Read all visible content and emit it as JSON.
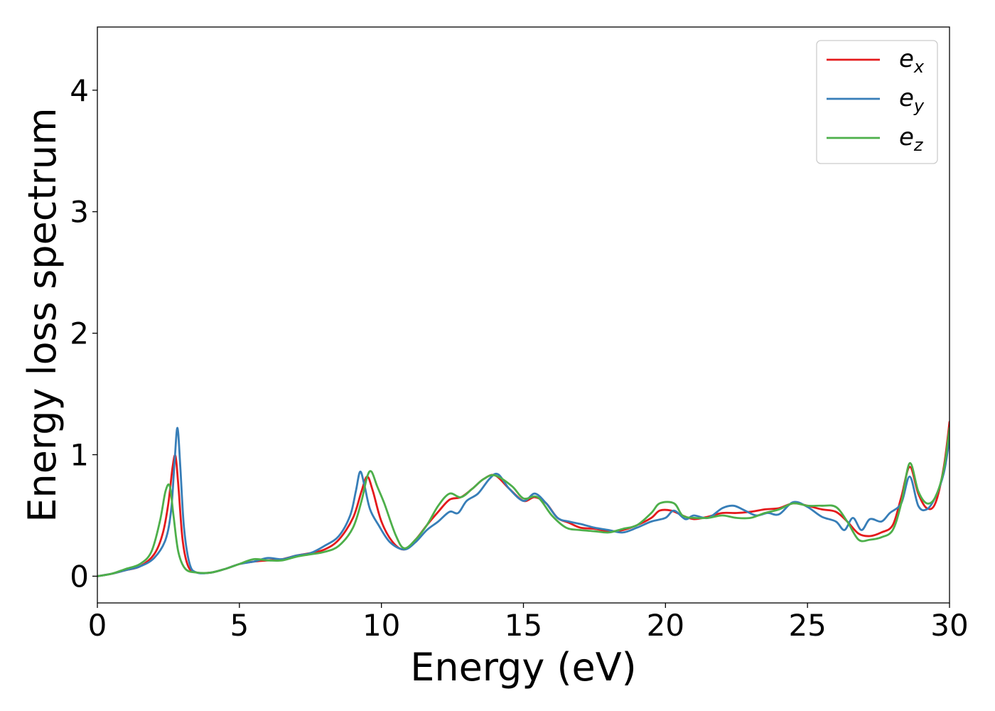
{
  "chart_data": {
    "type": "line",
    "title": "",
    "xlabel": "Energy (eV)",
    "ylabel": "Energy loss spectrum",
    "xlim": [
      0,
      30
    ],
    "ylim": [
      -0.22,
      4.52
    ],
    "xticks": [
      "0",
      "5",
      "10",
      "15",
      "20",
      "25",
      "30"
    ],
    "yticks": [
      "0",
      "1",
      "2",
      "3",
      "4"
    ],
    "grid": false,
    "legend_position": "top-right",
    "series": [
      {
        "name": "e_x",
        "legend_base": "e",
        "legend_sub": "x",
        "color": "#e41a1c",
        "points": [
          [
            0,
            0
          ],
          [
            0.5,
            0.02
          ],
          [
            1,
            0.05
          ],
          [
            1.5,
            0.08
          ],
          [
            2,
            0.18
          ],
          [
            2.3,
            0.35
          ],
          [
            2.5,
            0.6
          ],
          [
            2.65,
            0.9
          ],
          [
            2.75,
            0.99
          ],
          [
            2.85,
            0.75
          ],
          [
            3,
            0.3
          ],
          [
            3.2,
            0.08
          ],
          [
            3.5,
            0.03
          ],
          [
            4,
            0.03
          ],
          [
            4.5,
            0.06
          ],
          [
            5,
            0.1
          ],
          [
            5.5,
            0.12
          ],
          [
            6,
            0.13
          ],
          [
            6.5,
            0.14
          ],
          [
            7,
            0.17
          ],
          [
            7.5,
            0.19
          ],
          [
            8,
            0.22
          ],
          [
            8.5,
            0.3
          ],
          [
            9,
            0.48
          ],
          [
            9.3,
            0.7
          ],
          [
            9.5,
            0.82
          ],
          [
            9.7,
            0.7
          ],
          [
            10,
            0.45
          ],
          [
            10.4,
            0.28
          ],
          [
            10.8,
            0.22
          ],
          [
            11.2,
            0.3
          ],
          [
            11.6,
            0.42
          ],
          [
            12,
            0.53
          ],
          [
            12.4,
            0.63
          ],
          [
            12.8,
            0.65
          ],
          [
            13.2,
            0.72
          ],
          [
            13.6,
            0.8
          ],
          [
            14,
            0.83
          ],
          [
            14.5,
            0.72
          ],
          [
            15,
            0.62
          ],
          [
            15.4,
            0.65
          ],
          [
            15.8,
            0.6
          ],
          [
            16.2,
            0.48
          ],
          [
            16.6,
            0.44
          ],
          [
            17,
            0.4
          ],
          [
            17.5,
            0.39
          ],
          [
            18,
            0.37
          ],
          [
            18.5,
            0.38
          ],
          [
            19,
            0.42
          ],
          [
            19.5,
            0.48
          ],
          [
            19.8,
            0.54
          ],
          [
            20.2,
            0.54
          ],
          [
            20.6,
            0.5
          ],
          [
            21,
            0.47
          ],
          [
            21.5,
            0.49
          ],
          [
            22,
            0.52
          ],
          [
            22.5,
            0.52
          ],
          [
            23,
            0.53
          ],
          [
            23.5,
            0.55
          ],
          [
            24,
            0.56
          ],
          [
            24.5,
            0.6
          ],
          [
            25,
            0.58
          ],
          [
            25.5,
            0.55
          ],
          [
            26,
            0.53
          ],
          [
            26.4,
            0.45
          ],
          [
            26.8,
            0.35
          ],
          [
            27.2,
            0.33
          ],
          [
            27.6,
            0.36
          ],
          [
            28,
            0.42
          ],
          [
            28.3,
            0.65
          ],
          [
            28.6,
            0.9
          ],
          [
            28.9,
            0.68
          ],
          [
            29.2,
            0.56
          ],
          [
            29.5,
            0.6
          ],
          [
            29.8,
            0.9
          ],
          [
            30,
            1.27
          ]
        ]
      },
      {
        "name": "e_y",
        "legend_base": "e",
        "legend_sub": "y",
        "color": "#377eb8",
        "points": [
          [
            0,
            0
          ],
          [
            0.5,
            0.02
          ],
          [
            1,
            0.05
          ],
          [
            1.5,
            0.08
          ],
          [
            2,
            0.15
          ],
          [
            2.4,
            0.3
          ],
          [
            2.6,
            0.55
          ],
          [
            2.72,
            0.95
          ],
          [
            2.82,
            1.22
          ],
          [
            2.92,
            0.9
          ],
          [
            3.05,
            0.4
          ],
          [
            3.25,
            0.1
          ],
          [
            3.5,
            0.03
          ],
          [
            4,
            0.03
          ],
          [
            4.5,
            0.06
          ],
          [
            5,
            0.1
          ],
          [
            5.5,
            0.12
          ],
          [
            6,
            0.15
          ],
          [
            6.5,
            0.14
          ],
          [
            7,
            0.17
          ],
          [
            7.5,
            0.19
          ],
          [
            8,
            0.25
          ],
          [
            8.5,
            0.33
          ],
          [
            8.9,
            0.5
          ],
          [
            9.1,
            0.7
          ],
          [
            9.25,
            0.86
          ],
          [
            9.4,
            0.75
          ],
          [
            9.6,
            0.55
          ],
          [
            9.9,
            0.42
          ],
          [
            10.3,
            0.28
          ],
          [
            10.8,
            0.22
          ],
          [
            11.2,
            0.28
          ],
          [
            11.6,
            0.38
          ],
          [
            12,
            0.45
          ],
          [
            12.4,
            0.53
          ],
          [
            12.7,
            0.52
          ],
          [
            13,
            0.62
          ],
          [
            13.4,
            0.68
          ],
          [
            13.8,
            0.8
          ],
          [
            14.1,
            0.84
          ],
          [
            14.5,
            0.72
          ],
          [
            15,
            0.62
          ],
          [
            15.4,
            0.68
          ],
          [
            15.8,
            0.6
          ],
          [
            16.2,
            0.48
          ],
          [
            16.6,
            0.45
          ],
          [
            17,
            0.43
          ],
          [
            17.5,
            0.4
          ],
          [
            18,
            0.38
          ],
          [
            18.5,
            0.36
          ],
          [
            19,
            0.4
          ],
          [
            19.5,
            0.45
          ],
          [
            20,
            0.48
          ],
          [
            20.3,
            0.54
          ],
          [
            20.7,
            0.47
          ],
          [
            21,
            0.5
          ],
          [
            21.5,
            0.48
          ],
          [
            22,
            0.56
          ],
          [
            22.4,
            0.58
          ],
          [
            22.8,
            0.54
          ],
          [
            23.2,
            0.5
          ],
          [
            23.6,
            0.52
          ],
          [
            24,
            0.51
          ],
          [
            24.5,
            0.61
          ],
          [
            25,
            0.57
          ],
          [
            25.5,
            0.49
          ],
          [
            26,
            0.45
          ],
          [
            26.3,
            0.38
          ],
          [
            26.6,
            0.48
          ],
          [
            26.9,
            0.38
          ],
          [
            27.2,
            0.47
          ],
          [
            27.6,
            0.45
          ],
          [
            27.9,
            0.52
          ],
          [
            28.3,
            0.6
          ],
          [
            28.6,
            0.82
          ],
          [
            28.9,
            0.58
          ],
          [
            29.2,
            0.55
          ],
          [
            29.5,
            0.65
          ],
          [
            29.8,
            0.85
          ],
          [
            30,
            1.13
          ]
        ]
      },
      {
        "name": "e_z",
        "legend_base": "e",
        "legend_sub": "z",
        "color": "#4daf4a",
        "points": [
          [
            0,
            0
          ],
          [
            0.5,
            0.02
          ],
          [
            1,
            0.06
          ],
          [
            1.5,
            0.1
          ],
          [
            1.9,
            0.2
          ],
          [
            2.2,
            0.45
          ],
          [
            2.4,
            0.7
          ],
          [
            2.55,
            0.74
          ],
          [
            2.68,
            0.5
          ],
          [
            2.85,
            0.2
          ],
          [
            3.1,
            0.06
          ],
          [
            3.5,
            0.03
          ],
          [
            4,
            0.03
          ],
          [
            4.5,
            0.06
          ],
          [
            5,
            0.1
          ],
          [
            5.5,
            0.14
          ],
          [
            6,
            0.13
          ],
          [
            6.5,
            0.13
          ],
          [
            7,
            0.16
          ],
          [
            7.5,
            0.18
          ],
          [
            8,
            0.2
          ],
          [
            8.5,
            0.25
          ],
          [
            9,
            0.4
          ],
          [
            9.3,
            0.62
          ],
          [
            9.5,
            0.82
          ],
          [
            9.65,
            0.86
          ],
          [
            9.85,
            0.74
          ],
          [
            10.1,
            0.6
          ],
          [
            10.5,
            0.34
          ],
          [
            10.8,
            0.23
          ],
          [
            11.2,
            0.3
          ],
          [
            11.6,
            0.42
          ],
          [
            12,
            0.58
          ],
          [
            12.4,
            0.68
          ],
          [
            12.8,
            0.65
          ],
          [
            13.2,
            0.72
          ],
          [
            13.6,
            0.8
          ],
          [
            14,
            0.83
          ],
          [
            14.6,
            0.74
          ],
          [
            15,
            0.64
          ],
          [
            15.5,
            0.65
          ],
          [
            16,
            0.5
          ],
          [
            16.5,
            0.4
          ],
          [
            17,
            0.38
          ],
          [
            17.5,
            0.37
          ],
          [
            18,
            0.36
          ],
          [
            18.5,
            0.39
          ],
          [
            19,
            0.42
          ],
          [
            19.5,
            0.52
          ],
          [
            19.8,
            0.6
          ],
          [
            20.3,
            0.6
          ],
          [
            20.6,
            0.5
          ],
          [
            21,
            0.48
          ],
          [
            21.5,
            0.48
          ],
          [
            22,
            0.5
          ],
          [
            22.5,
            0.48
          ],
          [
            23,
            0.48
          ],
          [
            23.5,
            0.52
          ],
          [
            24,
            0.55
          ],
          [
            24.5,
            0.6
          ],
          [
            25,
            0.58
          ],
          [
            25.5,
            0.58
          ],
          [
            26,
            0.57
          ],
          [
            26.4,
            0.45
          ],
          [
            26.8,
            0.3
          ],
          [
            27.2,
            0.3
          ],
          [
            27.6,
            0.32
          ],
          [
            28,
            0.38
          ],
          [
            28.3,
            0.6
          ],
          [
            28.6,
            0.93
          ],
          [
            28.9,
            0.7
          ],
          [
            29.2,
            0.6
          ],
          [
            29.5,
            0.65
          ],
          [
            29.8,
            0.88
          ],
          [
            30,
            1.22
          ]
        ]
      }
    ]
  }
}
